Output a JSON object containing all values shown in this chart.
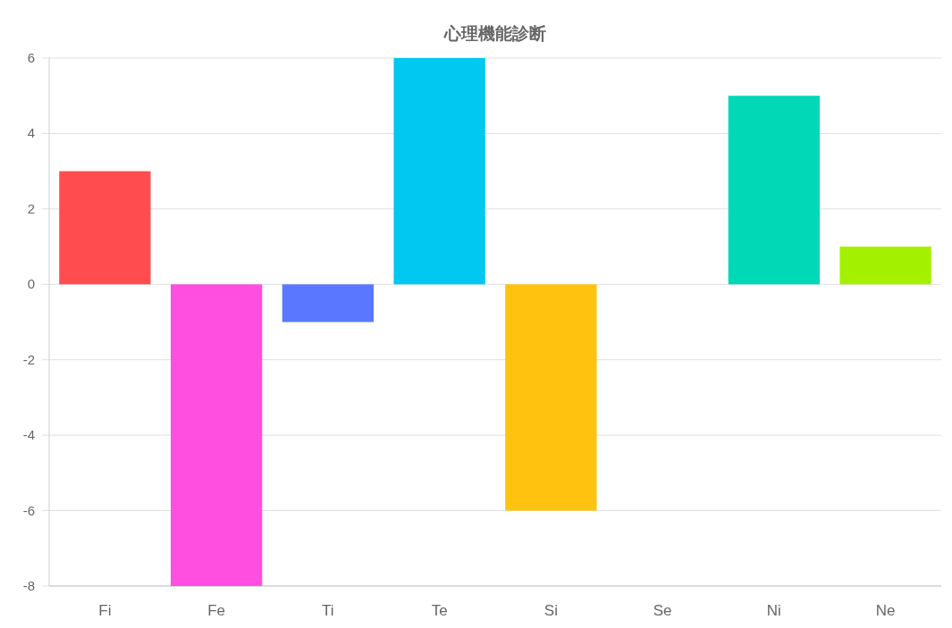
{
  "chart_data": {
    "type": "bar",
    "title": "心理機能診断",
    "categories": [
      "Fi",
      "Fe",
      "Ti",
      "Te",
      "Si",
      "Se",
      "Ni",
      "Ne"
    ],
    "values": [
      3,
      -8,
      -1,
      6,
      -6,
      0,
      5,
      1
    ],
    "colors": [
      "#ff4d4f",
      "#ff4fe0",
      "#5a78ff",
      "#00c8f0",
      "#ffc20e",
      "#9966ff",
      "#00d8b6",
      "#a3f000"
    ],
    "ylim": [
      -8,
      6
    ],
    "yticks": [
      -8,
      -6,
      -4,
      -2,
      0,
      2,
      4,
      6
    ],
    "grid": "y"
  }
}
